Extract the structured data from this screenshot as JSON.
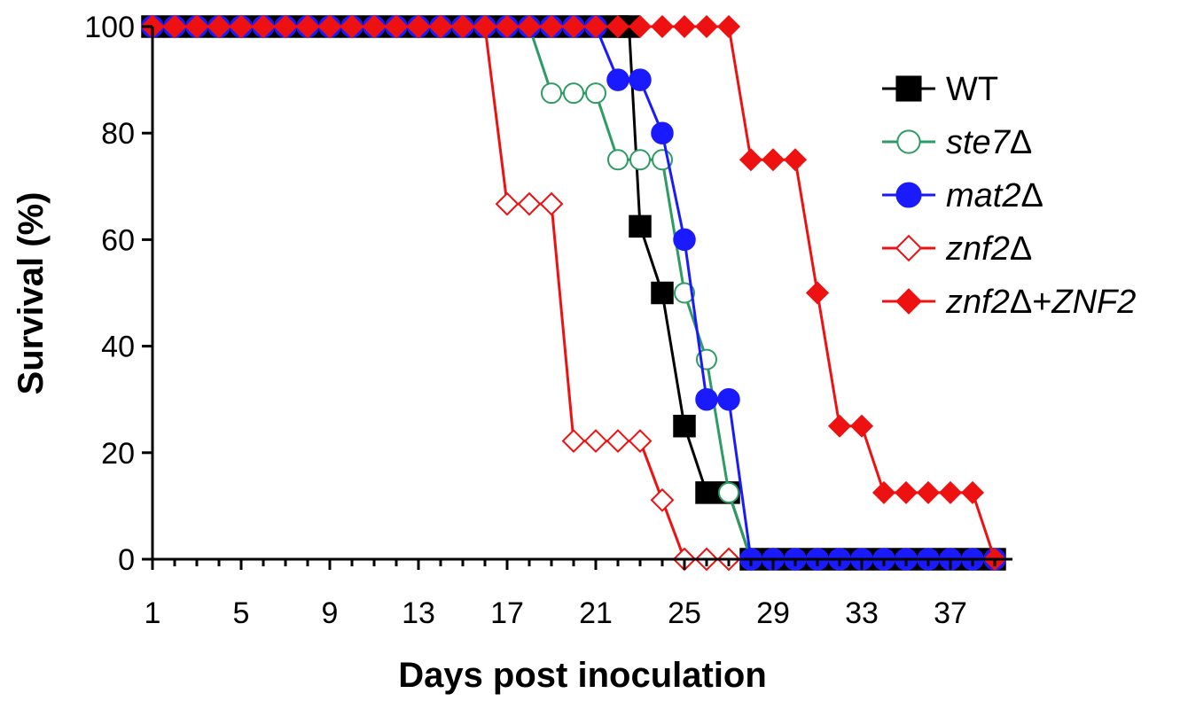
{
  "chart_data": {
    "type": "line",
    "title": "",
    "xlabel": "Days post inoculation",
    "ylabel": "Survival (%)",
    "xlim": [
      1,
      39
    ],
    "ylim": [
      0,
      100
    ],
    "xticks": [
      1,
      5,
      9,
      13,
      17,
      21,
      25,
      29,
      33,
      37
    ],
    "yticks": [
      0,
      20,
      40,
      60,
      80,
      100
    ],
    "grid": false,
    "legend_position": "right",
    "series": [
      {
        "name": "WT",
        "name_main": "WT",
        "name_italic": "",
        "name_suffix": "",
        "color": "#000000",
        "marker": "square",
        "filled": true,
        "x": [
          1,
          2,
          3,
          4,
          5,
          6,
          7,
          8,
          9,
          10,
          11,
          12,
          13,
          14,
          15,
          16,
          17,
          18,
          19,
          20,
          21,
          22,
          22.5,
          23,
          24,
          25,
          26,
          27,
          28,
          29,
          30,
          31,
          32,
          33,
          34,
          35,
          36,
          37,
          38,
          39
        ],
        "y": [
          100,
          100,
          100,
          100,
          100,
          100,
          100,
          100,
          100,
          100,
          100,
          100,
          100,
          100,
          100,
          100,
          100,
          100,
          100,
          100,
          100,
          100,
          100,
          62.5,
          50,
          25,
          12.5,
          12.5,
          0,
          0,
          0,
          0,
          0,
          0,
          0,
          0,
          0,
          0,
          0,
          0
        ]
      },
      {
        "name": "ste7Δ",
        "name_main": "",
        "name_italic": "ste7",
        "name_suffix": "Δ",
        "color": "#2e9a64",
        "marker": "circle",
        "filled": false,
        "x": [
          1,
          2,
          3,
          4,
          5,
          6,
          7,
          8,
          9,
          10,
          11,
          12,
          13,
          14,
          15,
          16,
          17,
          18,
          19,
          20,
          21,
          22,
          23,
          24,
          25,
          26,
          27,
          28,
          29,
          30,
          31,
          32,
          33,
          34,
          35,
          36,
          37,
          38,
          39
        ],
        "y": [
          100,
          100,
          100,
          100,
          100,
          100,
          100,
          100,
          100,
          100,
          100,
          100,
          100,
          100,
          100,
          100,
          100,
          100,
          87.5,
          87.5,
          87.5,
          75,
          75,
          75,
          50,
          37.5,
          12.5,
          0,
          0,
          0,
          0,
          0,
          0,
          0,
          0,
          0,
          0,
          0,
          0
        ]
      },
      {
        "name": "mat2Δ",
        "name_main": "",
        "name_italic": "mat2",
        "name_suffix": "Δ",
        "color": "#1a1aff",
        "marker": "circle",
        "filled": true,
        "x": [
          1,
          2,
          3,
          4,
          5,
          6,
          7,
          8,
          9,
          10,
          11,
          12,
          13,
          14,
          15,
          16,
          17,
          18,
          19,
          20,
          21,
          22,
          23,
          24,
          25,
          26,
          27,
          28,
          29,
          30,
          31,
          32,
          33,
          34,
          35,
          36,
          37,
          38,
          39
        ],
        "y": [
          100,
          100,
          100,
          100,
          100,
          100,
          100,
          100,
          100,
          100,
          100,
          100,
          100,
          100,
          100,
          100,
          100,
          100,
          100,
          100,
          100,
          90,
          90,
          80,
          60,
          30,
          30,
          0,
          0,
          0,
          0,
          0,
          0,
          0,
          0,
          0,
          0,
          0,
          0
        ]
      },
      {
        "name": "znf2Δ",
        "name_main": "",
        "name_italic": "znf2",
        "name_suffix": "Δ",
        "color": "#ee1111",
        "marker": "diamond",
        "filled": false,
        "x": [
          1,
          2,
          3,
          4,
          5,
          6,
          7,
          8,
          9,
          10,
          11,
          12,
          13,
          14,
          15,
          16,
          17,
          18,
          19,
          20,
          21,
          22,
          23,
          24,
          25,
          26,
          27
        ],
        "y": [
          100,
          100,
          100,
          100,
          100,
          100,
          100,
          100,
          100,
          100,
          100,
          100,
          100,
          100,
          100,
          100,
          66.7,
          66.7,
          66.7,
          22.2,
          22.2,
          22.2,
          22.2,
          11.1,
          0,
          0,
          0
        ]
      },
      {
        "name": "znf2Δ+ZNF2",
        "name_main": "",
        "name_italic": "znf2",
        "name_suffix": "Δ+",
        "name_italic2": "ZNF2",
        "color": "#ee1111",
        "marker": "diamond",
        "filled": true,
        "x": [
          1,
          2,
          3,
          4,
          5,
          6,
          7,
          8,
          9,
          10,
          11,
          12,
          13,
          14,
          15,
          16,
          17,
          18,
          19,
          20,
          21,
          22,
          23,
          24,
          25,
          26,
          27,
          28,
          29,
          30,
          31,
          32,
          33,
          34,
          35,
          36,
          37,
          38,
          39
        ],
        "y": [
          100,
          100,
          100,
          100,
          100,
          100,
          100,
          100,
          100,
          100,
          100,
          100,
          100,
          100,
          100,
          100,
          100,
          100,
          100,
          100,
          100,
          100,
          100,
          100,
          100,
          100,
          100,
          75,
          75,
          75,
          50,
          25,
          25,
          12.5,
          12.5,
          12.5,
          12.5,
          12.5,
          0
        ]
      }
    ]
  }
}
